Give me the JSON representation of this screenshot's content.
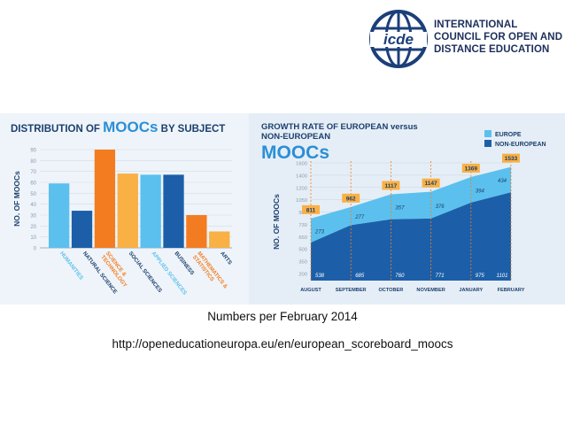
{
  "logo": {
    "emblem_text": "icde",
    "org_lines": [
      "INTERNATIONAL",
      "COUNCIL FOR OPEN AND",
      "DISTANCE EDUCATION"
    ]
  },
  "captions": {
    "date_note": "Numbers per February 2014",
    "source_url": "http://openeducationeuropa.eu/en/european_scoreboard_moocs"
  },
  "colors": {
    "brand_navy": "#1c3f7a",
    "light_blue": "#5bc0ee",
    "dark_blue": "#1c5fa8",
    "orange": "#f47c20",
    "light_orange": "#f9b044",
    "title_navy": "#1c3f6e"
  },
  "chart_data": [
    {
      "type": "bar",
      "title_parts": [
        "DISTRIBUTION OF",
        "MOOCs",
        "BY SUBJECT"
      ],
      "ylabel": "NO. OF MOOCs",
      "ylim": [
        0,
        90
      ],
      "yticks": [
        0,
        10,
        20,
        30,
        40,
        50,
        60,
        70,
        80,
        90
      ],
      "categories": [
        "HUMANITIES",
        "NATURAL SCIENCE",
        "SCIENCE & TECHNOLOGY",
        "SOCIAL SCIENCES",
        "APPLIED SCIENCES",
        "BUSINESS",
        "MATHEMATICS & STATISTICS",
        "ARTS"
      ],
      "values": [
        59,
        34,
        90,
        68,
        67,
        67,
        30,
        15
      ],
      "bar_colors": [
        "#5bc0ee",
        "#1c5fa8",
        "#f47c20",
        "#f9b044",
        "#5bc0ee",
        "#1c5fa8",
        "#f47c20",
        "#f9b044"
      ]
    },
    {
      "type": "area",
      "title_lines": [
        "GROWTH RATE OF EUROPEAN versus",
        "NON-EUROPEAN"
      ],
      "title_big": "MOOCs",
      "ylabel": "NO. OF MOOCs",
      "ylim": [
        0,
        1600
      ],
      "yticks": [
        200,
        350,
        500,
        650,
        730,
        900,
        1050,
        1200,
        1400,
        1600
      ],
      "categories": [
        "AUGUST",
        "SEPTEMBER",
        "OCTOBER",
        "NOVEMBER",
        "JANUARY",
        "FEBRUARY"
      ],
      "series": [
        {
          "name": "EUROPE",
          "values": [
            273,
            277,
            357,
            376,
            394,
            434
          ],
          "color": "#5bc0ee"
        },
        {
          "name": "NON-EUROPEAN",
          "values": [
            538,
            685,
            760,
            771,
            975,
            1101
          ],
          "color": "#1c5fa8"
        }
      ],
      "totals": [
        811,
        962,
        1117,
        1147,
        1369,
        1533
      ],
      "legend": "top-right"
    }
  ]
}
